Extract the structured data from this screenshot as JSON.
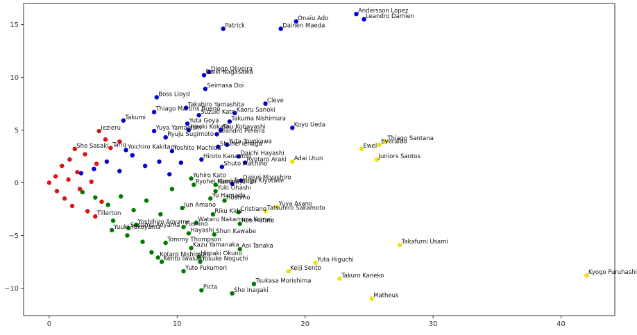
{
  "chart_data": {
    "type": "scatter",
    "title": "",
    "xlabel": "",
    "ylabel": "",
    "xlim": [
      -2,
      44.2
    ],
    "ylim": [
      -12.6,
      17.0
    ],
    "grid": false,
    "legend": "none",
    "x_ticks": [
      0,
      10,
      20,
      30,
      40
    ],
    "y_ticks": [
      -10,
      -5,
      0,
      5,
      10,
      15
    ],
    "colors": {
      "blue": "#0000cc",
      "green": "#007a00",
      "red": "#dd1111",
      "yellow": "#f0e000"
    },
    "points": [
      {
        "label": "Andersson Lopez",
        "x": 24.0,
        "y": 16.0,
        "color": "blue"
      },
      {
        "label": "Leandro Damien",
        "x": 24.6,
        "y": 15.5,
        "color": "blue"
      },
      {
        "label": "Onaiu Ado",
        "x": 19.3,
        "y": 15.3,
        "color": "blue"
      },
      {
        "label": "Patrick",
        "x": 13.6,
        "y": 14.6,
        "color": "blue"
      },
      {
        "label": "Dainen Maeda",
        "x": 18.1,
        "y": 14.6,
        "color": "blue"
      },
      {
        "label": "Diego Oliveira",
        "x": 12.5,
        "y": 10.5,
        "color": "blue"
      },
      {
        "label": "Daiki Nagasawa",
        "x": 12.1,
        "y": 10.2,
        "color": "blue"
      },
      {
        "label": "Seimasa Doi",
        "x": 12.2,
        "y": 8.9,
        "color": "blue"
      },
      {
        "label": "Boss Lloyd",
        "x": 8.4,
        "y": 8.1,
        "color": "blue"
      },
      {
        "label": "Cleve",
        "x": 16.9,
        "y": 7.5,
        "color": "blue"
      },
      {
        "label": "Takahiro Yamashita",
        "x": 10.7,
        "y": 7.1,
        "color": "blue"
      },
      {
        "label": "Thiago Martins Bueno",
        "x": 8.2,
        "y": 6.7,
        "color": "blue"
      },
      {
        "label": "Kaoru Sanoki",
        "x": 14.5,
        "y": 6.6,
        "color": "blue"
      },
      {
        "label": "Suzuki Kato",
        "x": 11.7,
        "y": 6.4,
        "color": "blue"
      },
      {
        "label": "Takumi",
        "x": 5.8,
        "y": 5.9,
        "color": "blue"
      },
      {
        "label": "Takuma Nishimura",
        "x": 14.1,
        "y": 5.8,
        "color": "blue"
      },
      {
        "label": "Yuta Goya",
        "x": 10.8,
        "y": 5.6,
        "color": "blue"
      },
      {
        "label": "Koyo Ueda",
        "x": 19.0,
        "y": 5.2,
        "color": "blue"
      },
      {
        "label": "Hiroki Kokata",
        "x": 10.9,
        "y": 5.0,
        "color": "blue"
      },
      {
        "label": "Shu Kobayashi",
        "x": 13.4,
        "y": 5.0,
        "color": "blue"
      },
      {
        "label": "Yuya Yamagishi",
        "x": 8.2,
        "y": 4.9,
        "color": "blue"
      },
      {
        "label": "Leandro Pereira",
        "x": 13.1,
        "y": 4.6,
        "color": "blue"
      },
      {
        "label": "Ryuju Sugimoto",
        "x": 9.1,
        "y": 4.3,
        "color": "blue"
      },
      {
        "label": "Yuta Toyokawa",
        "x": 13.9,
        "y": 3.6,
        "color": "blue"
      },
      {
        "label": "Daichi Hayashi",
        "x": 14.8,
        "y": 2.5,
        "color": "blue"
      },
      {
        "label": "Shuhei Ienaga",
        "x": 13.2,
        "y": 3.4,
        "color": "blue"
      },
      {
        "label": "Yoichiro Kakitani",
        "x": 6.0,
        "y": 3.1,
        "color": "blue"
      },
      {
        "label": "Yoshito Machida",
        "x": 9.6,
        "y": 3.0,
        "color": "blue"
      },
      {
        "label": "Ryotaro Araki",
        "x": 15.3,
        "y": 1.9,
        "color": "blue"
      },
      {
        "label": "Hiroto Kanamori",
        "x": 11.9,
        "y": 2.2,
        "color": "blue"
      },
      {
        "label": "Shuto Machino",
        "x": 13.5,
        "y": 1.5,
        "color": "blue"
      },
      {
        "label": "Ewel",
        "x": 24.4,
        "y": 3.2,
        "color": "yellow"
      },
      {
        "label": "Everaldo",
        "x": 25.8,
        "y": 3.6,
        "color": "yellow"
      },
      {
        "label": "Thiago Santana",
        "x": 26.3,
        "y": 3.9,
        "color": "yellow"
      },
      {
        "label": "Juniors Santos",
        "x": 25.6,
        "y": 2.2,
        "color": "yellow"
      },
      {
        "label": "Adai Utun",
        "x": 19.0,
        "y": 2.0,
        "color": "yellow"
      },
      {
        "label": "Daisei Miyashiro",
        "x": 15.0,
        "y": 0.2,
        "color": "blue"
      },
      {
        "label": "Tetsugu Kiyotake",
        "x": 14.3,
        "y": -0.1,
        "color": "blue"
      },
      {
        "label": "Marcos Junior",
        "x": 13.0,
        "y": -0.2,
        "color": "green"
      },
      {
        "label": "Yuhiro Kato",
        "x": 11.1,
        "y": 0.4,
        "color": "green"
      },
      {
        "label": "Ryohei Kamiya",
        "x": 11.3,
        "y": -0.2,
        "color": "green"
      },
      {
        "label": "Yuki Ohashi",
        "x": 13.0,
        "y": -0.8,
        "color": "green"
      },
      {
        "label": "Hoshino",
        "x": 13.7,
        "y": -1.7,
        "color": "green"
      },
      {
        "label": "Yu Hamada",
        "x": 12.6,
        "y": -1.5,
        "color": "green"
      },
      {
        "label": "Jun Amano",
        "x": 10.4,
        "y": -2.4,
        "color": "green"
      },
      {
        "label": "Yuya Asano",
        "x": 17.8,
        "y": -2.3,
        "color": "yellow"
      },
      {
        "label": "Tatsuhiro Sakamoto",
        "x": 16.9,
        "y": -2.7,
        "color": "yellow"
      },
      {
        "label": "Cristiano",
        "x": 14.8,
        "y": -2.8,
        "color": "green"
      },
      {
        "label": "Riku Kida",
        "x": 12.8,
        "y": -3.0,
        "color": "green"
      },
      {
        "label": "Reo Hatate",
        "x": 14.9,
        "y": -3.9,
        "color": "green"
      },
      {
        "label": "Wataru Nakamura Komai",
        "x": 11.5,
        "y": -3.8,
        "color": "green"
      },
      {
        "label": "Yoshihiro Aoyama",
        "x": 6.8,
        "y": -4.0,
        "color": "green"
      },
      {
        "label": "Susumu Aoyama",
        "x": 6.2,
        "y": -4.3,
        "color": "green"
      },
      {
        "label": "Fushino",
        "x": 10.5,
        "y": -4.2,
        "color": "green"
      },
      {
        "label": "Yuuki Yokoyama",
        "x": 4.9,
        "y": -4.5,
        "color": "green"
      },
      {
        "label": "Hayashi",
        "x": 10.9,
        "y": -4.8,
        "color": "green"
      },
      {
        "label": "Shun Kawabe",
        "x": 12.9,
        "y": -4.9,
        "color": "green"
      },
      {
        "label": "Tommy Thompson",
        "x": 9.1,
        "y": -5.7,
        "color": "green"
      },
      {
        "label": "Aoi Tanaka",
        "x": 14.9,
        "y": -6.3,
        "color": "green"
      },
      {
        "label": "Takafumi Usami",
        "x": 27.4,
        "y": -5.9,
        "color": "yellow"
      },
      {
        "label": "Kazu Yamanaka",
        "x": 11.1,
        "y": -6.2,
        "color": "green"
      },
      {
        "label": "Hiroaki Okuno",
        "x": 11.7,
        "y": -7.0,
        "color": "green"
      },
      {
        "label": "Kotaro Nishimura",
        "x": 8.5,
        "y": -7.1,
        "color": "green"
      },
      {
        "label": "Yosuke Noguchi",
        "x": 11.8,
        "y": -7.5,
        "color": "green"
      },
      {
        "label": "Kento Iwasaki",
        "x": 8.8,
        "y": -7.5,
        "color": "green"
      },
      {
        "label": "Yuta Higuchi",
        "x": 20.8,
        "y": -7.6,
        "color": "yellow"
      },
      {
        "label": "Yuto Fukumori",
        "x": 10.5,
        "y": -8.4,
        "color": "green"
      },
      {
        "label": "Keiji Sento",
        "x": 18.7,
        "y": -8.4,
        "color": "yellow"
      },
      {
        "label": "Takuro Kaneko",
        "x": 22.7,
        "y": -9.1,
        "color": "yellow"
      },
      {
        "label": "Kyogo Furuhashi",
        "x": 42.0,
        "y": -8.8,
        "color": "yellow"
      },
      {
        "label": "Tsukasa Morishima",
        "x": 16.0,
        "y": -9.6,
        "color": "green"
      },
      {
        "label": "Picta",
        "x": 11.9,
        "y": -10.2,
        "color": "green"
      },
      {
        "label": "Sho Inagaki",
        "x": 14.3,
        "y": -10.5,
        "color": "green"
      },
      {
        "label": "Matheus",
        "x": 25.2,
        "y": -11.0,
        "color": "yellow"
      },
      {
        "label": "Iezieru",
        "x": 3.9,
        "y": 4.9,
        "color": "red"
      },
      {
        "label": "Sho Sasaki",
        "x": 2.0,
        "y": 3.2,
        "color": "red"
      },
      {
        "label": "Tariq",
        "x": 4.8,
        "y": 3.3,
        "color": "red"
      },
      {
        "label": "Tillerton",
        "x": 3.6,
        "y": -3.2,
        "color": "red"
      },
      {
        "label": "",
        "x": 0.0,
        "y": 0.0,
        "color": "red"
      },
      {
        "label": "",
        "x": 0.5,
        "y": 0.6,
        "color": "red"
      },
      {
        "label": "",
        "x": 0.6,
        "y": -0.8,
        "color": "red"
      },
      {
        "label": "",
        "x": 1.0,
        "y": 1.6,
        "color": "red"
      },
      {
        "label": "",
        "x": 1.2,
        "y": -1.5,
        "color": "red"
      },
      {
        "label": "",
        "x": 1.5,
        "y": 0.3,
        "color": "red"
      },
      {
        "label": "",
        "x": 1.6,
        "y": 2.2,
        "color": "red"
      },
      {
        "label": "",
        "x": 1.8,
        "y": -2.2,
        "color": "red"
      },
      {
        "label": "",
        "x": 2.2,
        "y": 1.0,
        "color": "red"
      },
      {
        "label": "",
        "x": 2.4,
        "y": -0.6,
        "color": "red"
      },
      {
        "label": "",
        "x": 2.8,
        "y": 2.7,
        "color": "red"
      },
      {
        "label": "",
        "x": 3.0,
        "y": -2.7,
        "color": "red"
      },
      {
        "label": "",
        "x": 3.3,
        "y": 0.1,
        "color": "red"
      },
      {
        "label": "",
        "x": 3.7,
        "y": 1.8,
        "color": "red"
      },
      {
        "label": "",
        "x": 4.1,
        "y": -1.8,
        "color": "red"
      },
      {
        "label": "",
        "x": 4.4,
        "y": 4.1,
        "color": "red"
      },
      {
        "label": "",
        "x": 5.5,
        "y": 3.9,
        "color": "red"
      },
      {
        "label": "",
        "x": 2.5,
        "y": 0.9,
        "color": "blue"
      },
      {
        "label": "",
        "x": 3.5,
        "y": 1.3,
        "color": "blue"
      },
      {
        "label": "",
        "x": 4.5,
        "y": 2.0,
        "color": "blue"
      },
      {
        "label": "",
        "x": 5.5,
        "y": 1.1,
        "color": "blue"
      },
      {
        "label": "",
        "x": 6.5,
        "y": 2.6,
        "color": "blue"
      },
      {
        "label": "",
        "x": 7.5,
        "y": 1.6,
        "color": "blue"
      },
      {
        "label": "",
        "x": 8.6,
        "y": 2.0,
        "color": "blue"
      },
      {
        "label": "",
        "x": 9.4,
        "y": 0.8,
        "color": "blue"
      },
      {
        "label": "",
        "x": 10.3,
        "y": 1.9,
        "color": "blue"
      },
      {
        "label": "",
        "x": 2.6,
        "y": -0.9,
        "color": "green"
      },
      {
        "label": "",
        "x": 3.6,
        "y": -1.4,
        "color": "green"
      },
      {
        "label": "",
        "x": 4.6,
        "y": -2.1,
        "color": "green"
      },
      {
        "label": "",
        "x": 5.6,
        "y": -1.3,
        "color": "green"
      },
      {
        "label": "",
        "x": 6.6,
        "y": -2.6,
        "color": "green"
      },
      {
        "label": "",
        "x": 7.6,
        "y": -1.7,
        "color": "green"
      },
      {
        "label": "",
        "x": 8.7,
        "y": -3.0,
        "color": "green"
      },
      {
        "label": "",
        "x": 9.6,
        "y": -0.6,
        "color": "green"
      },
      {
        "label": "",
        "x": 5.0,
        "y": -3.6,
        "color": "green"
      },
      {
        "label": "",
        "x": 6.1,
        "y": -5.0,
        "color": "green"
      },
      {
        "label": "",
        "x": 7.3,
        "y": -5.6,
        "color": "green"
      },
      {
        "label": "",
        "x": 8.0,
        "y": -6.6,
        "color": "green"
      }
    ]
  }
}
